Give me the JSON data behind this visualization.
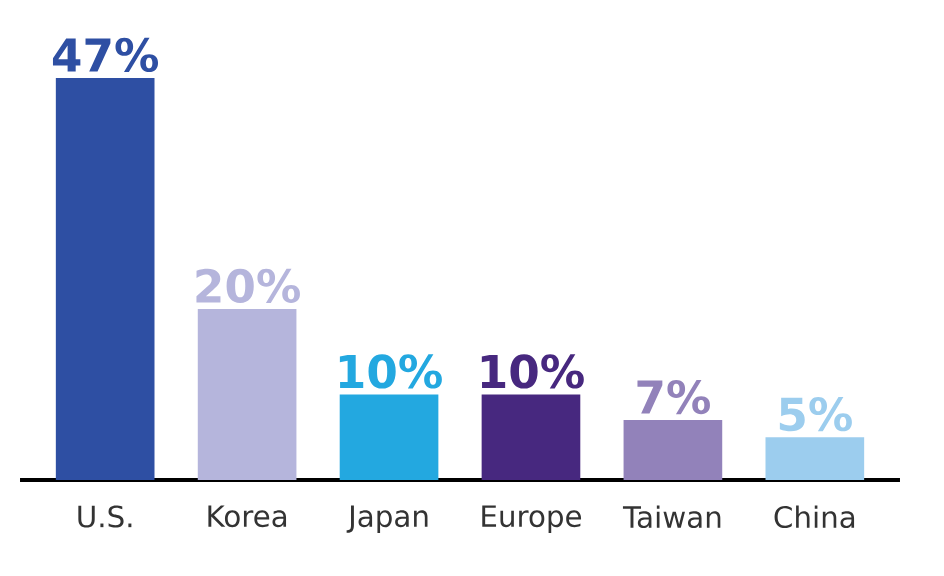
{
  "chart_data": {
    "type": "bar",
    "categories": [
      "U.S.",
      "Korea",
      "Japan",
      "Europe",
      "Taiwan",
      "China"
    ],
    "values": [
      47,
      20,
      10,
      10,
      7,
      5
    ],
    "colors": [
      "#2e4fa3",
      "#b5b5dc",
      "#23a8e0",
      "#47287f",
      "#9282ba",
      "#9ccdee"
    ],
    "value_labels": [
      "47%",
      "20%",
      "10%",
      "10%",
      "7%",
      "5%"
    ]
  }
}
